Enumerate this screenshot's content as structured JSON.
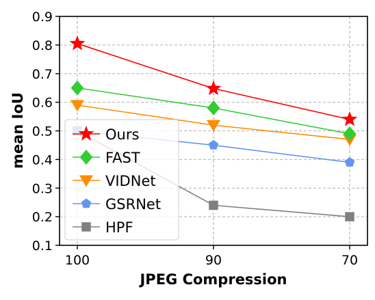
{
  "chart_data": {
    "type": "line",
    "xlabel": "JPEG Compression",
    "ylabel": "mean IoU",
    "categories": [
      "100",
      "90",
      "70"
    ],
    "ylim": [
      0.1,
      0.9
    ],
    "yticks": [
      "0.1",
      "0.2",
      "0.3",
      "0.4",
      "0.5",
      "0.6",
      "0.7",
      "0.8",
      "0.9"
    ],
    "grid": true,
    "legend_position": "bottom-left",
    "series": [
      {
        "name": "Ours",
        "values": [
          0.805,
          0.648,
          0.54
        ],
        "color": "#ff0000",
        "marker": "star"
      },
      {
        "name": "FAST",
        "values": [
          0.65,
          0.58,
          0.49
        ],
        "color": "#33cc33",
        "marker": "diamond"
      },
      {
        "name": "VIDNet",
        "values": [
          0.59,
          0.52,
          0.47
        ],
        "color": "#ff8c00",
        "marker": "triangle-down"
      },
      {
        "name": "GSRNet",
        "values": [
          0.5,
          0.45,
          0.39
        ],
        "color": "#6495ed",
        "marker": "pentagon"
      },
      {
        "name": "HPF",
        "values": [
          0.5,
          0.24,
          0.2
        ],
        "color": "#808080",
        "marker": "square"
      }
    ]
  }
}
